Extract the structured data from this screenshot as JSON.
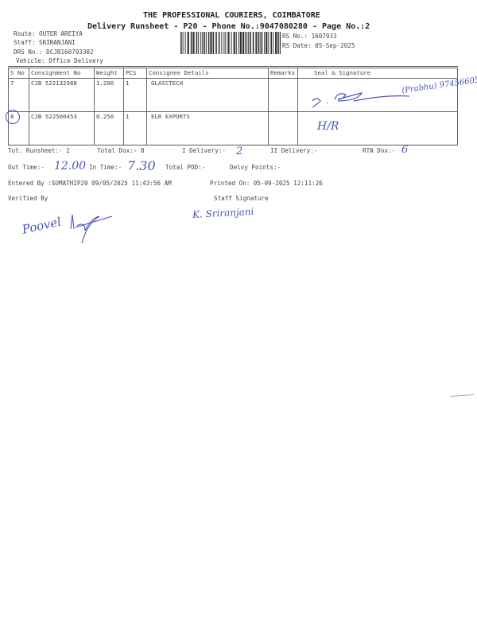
{
  "header": {
    "company": "THE PROFESSIONAL COURIERS, COIMBATORE",
    "subtitle": "Delivery Runsheet - P20 - Phone No.:9047080280 - Page No.:2",
    "route": "Route: OUTER AREIYA",
    "staff": "Staff: SRIRANJANI",
    "drs_no": "DRS No.: DCJB160793302",
    "vehicle": "Vehicle: Office Delivery",
    "rs_no": "RS No.: 1607933",
    "rs_date": "RS Date: 05-Sep-2025"
  },
  "table": {
    "columns": [
      "S No",
      "Consignment No",
      "Weight",
      "PCS",
      "Consignee Details",
      "Remarks",
      "Seal & Signature"
    ],
    "rows": [
      {
        "sno": "7",
        "consignment": "CJB 522132988",
        "weight": "1.200",
        "pcs": "1",
        "consignee": "GLASSTECH",
        "remarks": "",
        "seal": "(Prabhu) 9745660570.",
        "seal_sig": "S. Prabhu"
      },
      {
        "sno": "8",
        "consignment": "CJB 522500453",
        "weight": "0.250",
        "pcs": "1",
        "consignee": "ELR EXPORTS",
        "remarks": "",
        "seal": "H/R"
      }
    ]
  },
  "summary": {
    "tot_runsheet": "Tot. Runsheet:- 2",
    "total_dox": "Total Dox:-   8",
    "i_delivery": "I Delivery:-",
    "i_delivery_val": "2",
    "ii_delivery": "II Delivery:-",
    "rtn_dox": "RTN Dox:-",
    "rtn_dox_val": "6",
    "out_time": "Out Time:-",
    "out_time_val": "12.00",
    "in_time": "In Time:-",
    "in_time_val": "7.30",
    "total_pod": "Total POD:-",
    "delvy_points": "Delvy Points:-",
    "entered_by": "Entered By :SUMATHIP20 09/05/2025 11:43:56 AM",
    "printed_on": "Printed On: 05-09-2025 12:11:26",
    "verified_by": "Verified By",
    "staff_signature": "Staff Signature",
    "staff_sig_text": "K. Sriranjani",
    "verified_sig_text": "Poovel"
  },
  "colors": {
    "ink": "#4a55b8",
    "print": "#333333"
  }
}
